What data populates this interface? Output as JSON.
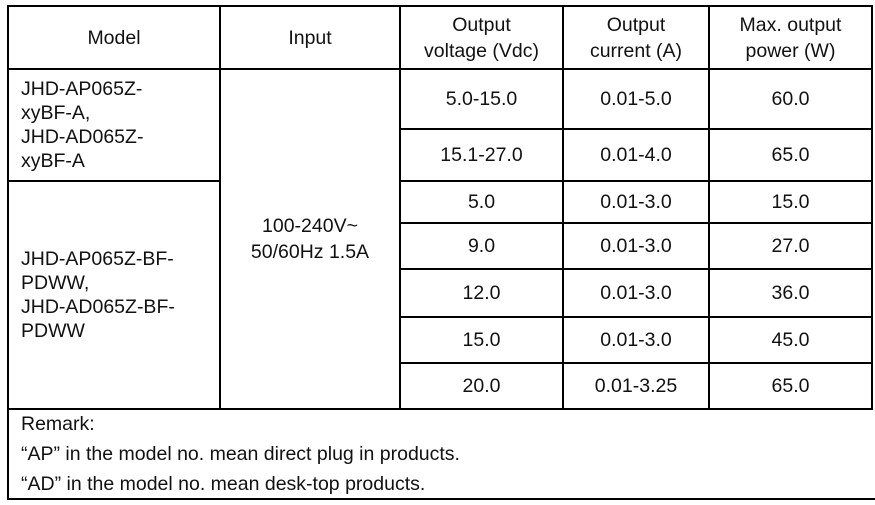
{
  "headers": {
    "model": "Model",
    "input": "Input",
    "voltage": [
      "Output",
      "voltage (Vdc)"
    ],
    "current": [
      "Output",
      "current (A)"
    ],
    "power": [
      "Max. output",
      "power (W)"
    ]
  },
  "groups": [
    {
      "model_lines": [
        "JHD-AP065Z-",
        "xyBF-A,",
        "JHD-AD065Z-",
        "xyBF-A"
      ],
      "rows": [
        {
          "voltage": "5.0-15.0",
          "current": "0.01-5.0",
          "power": "60.0"
        },
        {
          "voltage": "15.1-27.0",
          "current": "0.01-4.0",
          "power": "65.0"
        }
      ]
    },
    {
      "model_lines": [
        "JHD-AP065Z-BF-",
        "PDWW,",
        "JHD-AD065Z-BF-",
        "PDWW"
      ],
      "rows": [
        {
          "voltage": "5.0",
          "current": "0.01-3.0",
          "power": "15.0"
        },
        {
          "voltage": "9.0",
          "current": "0.01-3.0",
          "power": "27.0"
        },
        {
          "voltage": "12.0",
          "current": "0.01-3.0",
          "power": "36.0"
        },
        {
          "voltage": "15.0",
          "current": "0.01-3.0",
          "power": "45.0"
        },
        {
          "voltage": "20.0",
          "current": "0.01-3.25",
          "power": "65.0"
        }
      ]
    }
  ],
  "input_lines": [
    "100-240V~",
    "50/60Hz 1.5A"
  ],
  "remark": {
    "title": "Remark:",
    "lines": [
      "“AP” in the model no. mean direct plug in products.",
      "“AD” in the model no. mean desk-top products."
    ]
  }
}
